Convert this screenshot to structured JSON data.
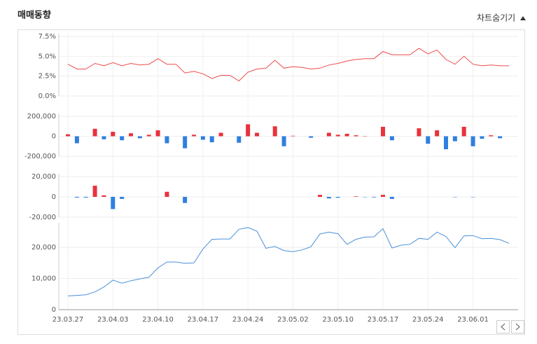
{
  "header": {
    "title": "매매동향",
    "toggle": "차트숨기기"
  },
  "chart_data": [
    {
      "type": "line",
      "color": "#f04b4b",
      "grid": true,
      "values": [
        4.0,
        3.4,
        3.4,
        4.1,
        3.8,
        4.2,
        3.8,
        4.1,
        3.9,
        4.0,
        4.7,
        4.0,
        4.0,
        2.9,
        3.1,
        2.8,
        2.2,
        2.6,
        2.6,
        1.9,
        3.0,
        3.4,
        3.5,
        4.5,
        3.5,
        3.7,
        3.6,
        3.4,
        3.5,
        3.9,
        4.1,
        4.4,
        4.6,
        4.7,
        4.7,
        5.6,
        5.2,
        5.2,
        5.2,
        6.0,
        5.3,
        5.8,
        4.6,
        4.0,
        5.0,
        4.0,
        3.8,
        3.9,
        3.8,
        3.8
      ],
      "ylim": [
        0,
        7.5
      ],
      "yticks": [
        {
          "value": 7.5,
          "label": "7.5%"
        },
        {
          "value": 5.0,
          "label": "5.0%"
        },
        {
          "value": 2.5,
          "label": "2.5%"
        },
        {
          "value": 0,
          "label": "0.0%"
        }
      ]
    },
    {
      "type": "bar",
      "positive_color": "#e8323c",
      "negative_color": "#2f7fe0",
      "grid": true,
      "values": [
        20000,
        -70000,
        0,
        75000,
        -30000,
        45000,
        -40000,
        30000,
        -20000,
        15000,
        60000,
        -70000,
        0,
        -120000,
        15000,
        -35000,
        -60000,
        35000,
        0,
        -65000,
        120000,
        35000,
        0,
        100000,
        -100000,
        5000,
        0,
        -15000,
        0,
        35000,
        15000,
        25000,
        10000,
        3000,
        0,
        95000,
        -40000,
        0,
        0,
        80000,
        -75000,
        60000,
        -130000,
        -50000,
        95000,
        -100000,
        -25000,
        10000,
        -20000,
        0
      ],
      "ylim": [
        -200000,
        200000
      ],
      "yticks": [
        {
          "value": 200000,
          "label": "200,000"
        },
        0,
        {
          "value": -200000,
          "label": "-200,000"
        }
      ]
    },
    {
      "type": "bar",
      "positive_color": "#e8323c",
      "negative_color": "#2f7fe0",
      "grid": true,
      "values": [
        0,
        -700,
        -700,
        11000,
        1500,
        -12000,
        -2000,
        0,
        0,
        0,
        0,
        5000,
        0,
        -6000,
        0,
        0,
        0,
        0,
        0,
        0,
        0,
        0,
        0,
        0,
        0,
        0,
        0,
        0,
        2000,
        -1500,
        -800,
        0,
        500,
        -300,
        -500,
        2000,
        -2000,
        0,
        0,
        0,
        0,
        0,
        0,
        -300,
        0,
        -300,
        0,
        0,
        0,
        0
      ],
      "ylim": [
        -20000,
        20000
      ],
      "yticks": [
        {
          "value": 20000,
          "label": "20,000"
        },
        0,
        {
          "value": -20000,
          "label": "-20,000"
        }
      ]
    },
    {
      "type": "line",
      "color": "#4a90d9",
      "grid": true,
      "categories": [
        "23.03.27",
        null,
        null,
        null,
        null,
        "23.04.03",
        null,
        null,
        null,
        null,
        "23.04.10",
        null,
        null,
        null,
        null,
        "23.04.17",
        null,
        null,
        null,
        null,
        "23.04.24",
        null,
        null,
        null,
        null,
        "23.05.02",
        null,
        null,
        null,
        null,
        "23.05.10",
        null,
        null,
        null,
        null,
        "23.05.17",
        null,
        null,
        null,
        null,
        "23.05.24",
        null,
        null,
        null,
        null,
        "23.06.01",
        null,
        null,
        null,
        null
      ],
      "values": [
        4400,
        4600,
        4800,
        5700,
        7300,
        9500,
        8500,
        9300,
        9900,
        10400,
        13400,
        15300,
        15300,
        14900,
        15000,
        19500,
        22600,
        22700,
        22700,
        25800,
        26400,
        25200,
        19700,
        20300,
        19000,
        18600,
        19200,
        20200,
        24300,
        24900,
        24400,
        21000,
        22600,
        23300,
        23400,
        26000,
        19800,
        20700,
        21000,
        22900,
        22600,
        24900,
        23500,
        19900,
        23700,
        23800,
        22800,
        22900,
        22500,
        21300
      ],
      "ylim": [
        0,
        27000
      ],
      "yticks": [
        {
          "value": 20000,
          "label": "20,000"
        },
        {
          "value": 10000,
          "label": "10,000"
        },
        0
      ]
    }
  ]
}
